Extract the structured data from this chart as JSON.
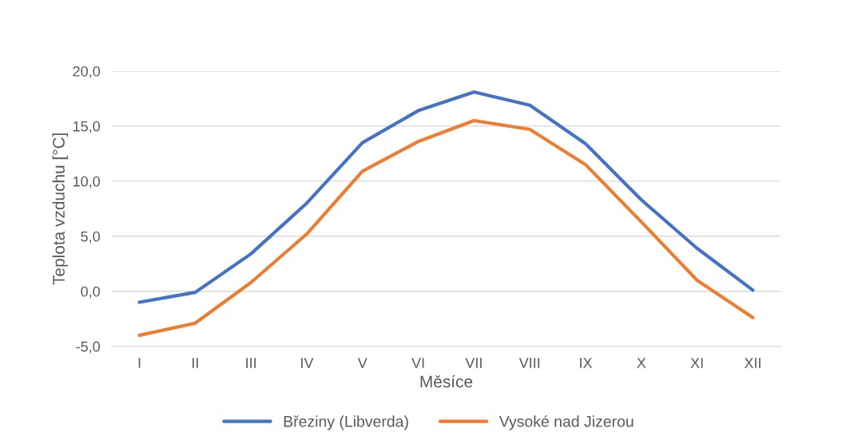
{
  "chart_data": {
    "type": "line",
    "xlabel": "Měsíce",
    "ylabel": "Teplota vzduchu [°C]",
    "categories": [
      "I",
      "II",
      "III",
      "IV",
      "V",
      "VI",
      "VII",
      "VIII",
      "IX",
      "X",
      "XI",
      "XII"
    ],
    "series": [
      {
        "name": "Březiny (Libverda)",
        "color": "#4472c4",
        "values": [
          -1.0,
          -0.1,
          3.4,
          8.0,
          13.5,
          16.4,
          18.1,
          16.9,
          13.4,
          8.3,
          3.9,
          0.1
        ]
      },
      {
        "name": "Vysoké nad Jizerou",
        "color": "#ed7d31",
        "values": [
          -4.0,
          -2.9,
          0.8,
          5.2,
          10.9,
          13.6,
          15.5,
          14.7,
          11.5,
          6.3,
          1.0,
          -2.4
        ]
      }
    ],
    "ylim": [
      -5,
      20
    ],
    "yticks": [
      {
        "value": -5,
        "label": "-5,0"
      },
      {
        "value": 0,
        "label": "0,0"
      },
      {
        "value": 5,
        "label": "5,0"
      },
      {
        "value": 10,
        "label": "10,0"
      },
      {
        "value": 15,
        "label": "15,0"
      },
      {
        "value": 20,
        "label": "20,0"
      }
    ],
    "grid": "y",
    "legend": "bottom",
    "marker": "none",
    "line_style": "solid"
  }
}
